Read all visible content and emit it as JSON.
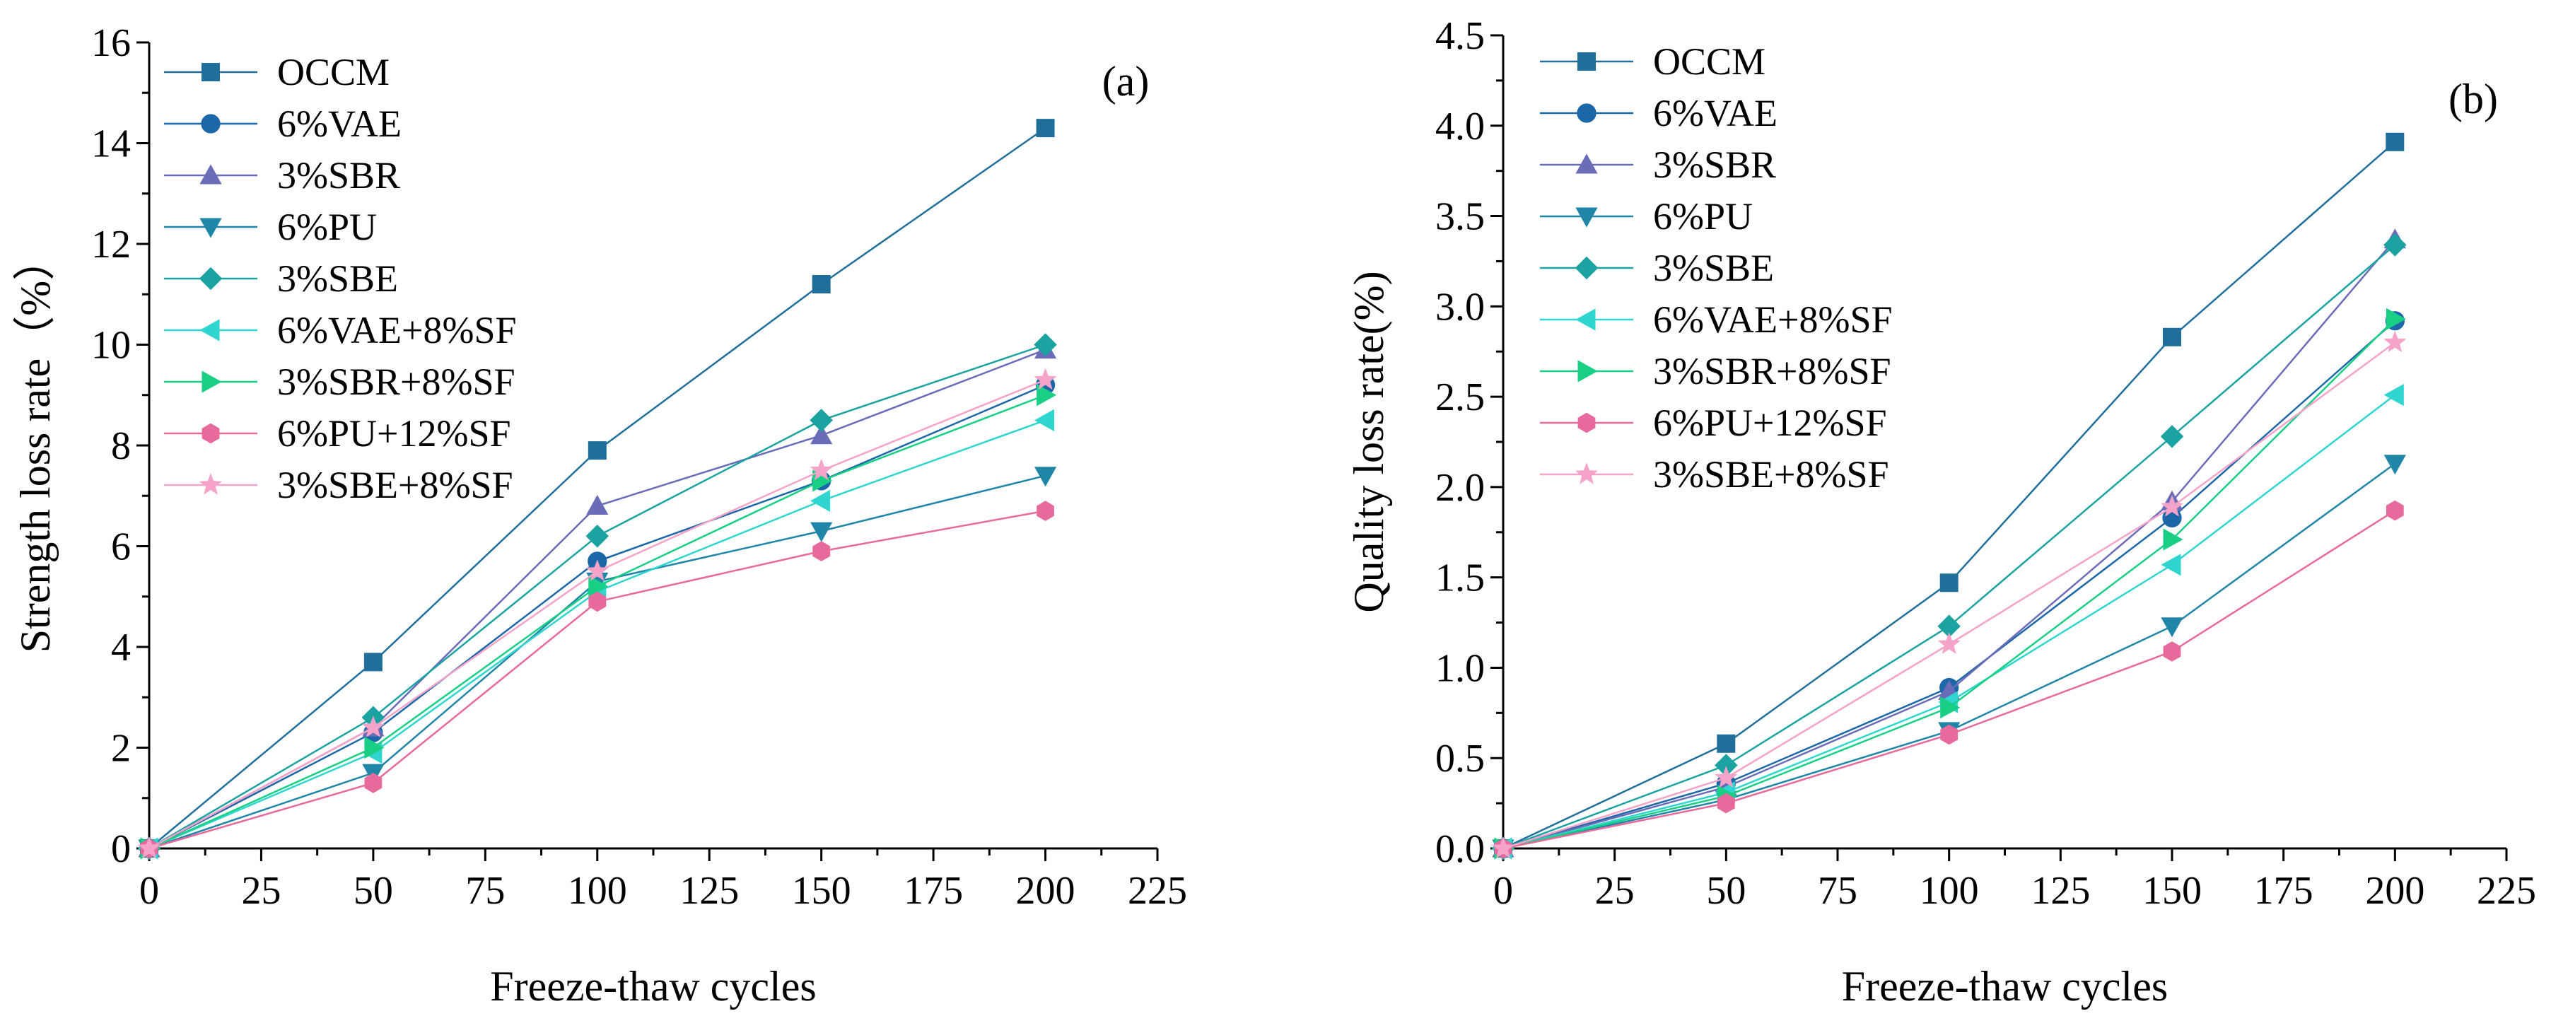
{
  "figure": {
    "colors": {
      "OCCM": "#1f6f9a",
      "6%VAE": "#1c67a8",
      "3%SBR": "#6a6cb8",
      "6%PU": "#1f86a8",
      "3%SBE": "#1aa3a0",
      "6%VAE+8%SF": "#2fd6d0",
      "3%SBR+8%SF": "#19cf86",
      "6%PU+12%SF": "#e8699b",
      "3%SBE+8%SF": "#f5a3c8"
    },
    "markers": {
      "OCCM": "square",
      "6%VAE": "circle",
      "3%SBR": "triangle-up",
      "6%PU": "triangle-down",
      "3%SBE": "diamond",
      "6%VAE+8%SF": "triangle-left",
      "3%SBR+8%SF": "triangle-right",
      "6%PU+12%SF": "hexagon",
      "3%SBE+8%SF": "star"
    }
  },
  "chart_data": [
    {
      "type": "line",
      "panel_label": "(a)",
      "xlabel": "Freeze-thaw cycles",
      "ylabel": "Strength loss rate（%）",
      "x": [
        0,
        50,
        100,
        150,
        200
      ],
      "xlim": [
        0,
        225
      ],
      "ylim": [
        0,
        16
      ],
      "xticks": [
        0,
        25,
        50,
        75,
        100,
        125,
        150,
        175,
        200,
        225
      ],
      "yticks": [
        0,
        2,
        4,
        6,
        8,
        10,
        12,
        14,
        16
      ],
      "xtick_labels": [
        "0",
        "25",
        "50",
        "75",
        "100",
        "125",
        "150",
        "175",
        "200",
        "225"
      ],
      "ytick_labels": [
        "0",
        "2",
        "4",
        "6",
        "8",
        "10",
        "12",
        "14",
        "16"
      ],
      "legend_position": "top-left",
      "series": [
        {
          "name": "OCCM",
          "values": [
            0,
            3.7,
            7.9,
            11.2,
            14.3
          ]
        },
        {
          "name": "6%VAE",
          "values": [
            0,
            2.3,
            5.7,
            7.3,
            9.2
          ]
        },
        {
          "name": "3%SBR",
          "values": [
            0,
            2.4,
            6.8,
            8.2,
            9.9
          ]
        },
        {
          "name": "6%PU",
          "values": [
            0,
            1.5,
            5.3,
            6.3,
            7.4
          ]
        },
        {
          "name": "3%SBE",
          "values": [
            0,
            2.6,
            6.2,
            8.5,
            10.0
          ]
        },
        {
          "name": "6%VAE+8%SF",
          "values": [
            0,
            1.9,
            5.1,
            6.9,
            8.5
          ]
        },
        {
          "name": "3%SBR+8%SF",
          "values": [
            0,
            2.0,
            5.2,
            7.3,
            9.0
          ]
        },
        {
          "name": "6%PU+12%SF",
          "values": [
            0,
            1.3,
            4.9,
            5.9,
            6.7
          ]
        },
        {
          "name": "3%SBE+8%SF",
          "values": [
            0,
            2.4,
            5.5,
            7.5,
            9.3
          ]
        }
      ]
    },
    {
      "type": "line",
      "panel_label": "(b)",
      "xlabel": "Freeze-thaw cycles",
      "ylabel": "Quality loss rate(%)",
      "x": [
        0,
        50,
        100,
        150,
        200
      ],
      "xlim": [
        0,
        225
      ],
      "ylim": [
        0,
        4.5
      ],
      "xticks": [
        0,
        25,
        50,
        75,
        100,
        125,
        150,
        175,
        200,
        225
      ],
      "yticks": [
        0,
        0.5,
        1,
        1.5,
        2,
        2.5,
        3,
        3.5,
        4,
        4.5
      ],
      "xtick_labels": [
        "0",
        "25",
        "50",
        "75",
        "100",
        "125",
        "150",
        "175",
        "200",
        "225"
      ],
      "ytick_labels": [
        "0.0",
        "0.5",
        "1.0",
        "1.5",
        "2.0",
        "2.5",
        "3.0",
        "3.5",
        "4.0",
        "4.5"
      ],
      "legend_position": "top-left",
      "series": [
        {
          "name": "OCCM",
          "values": [
            0,
            0.58,
            1.47,
            2.83,
            3.91
          ]
        },
        {
          "name": "6%VAE",
          "values": [
            0,
            0.36,
            0.89,
            1.83,
            2.92
          ]
        },
        {
          "name": "3%SBR",
          "values": [
            0,
            0.34,
            0.87,
            1.92,
            3.37
          ]
        },
        {
          "name": "6%PU",
          "values": [
            0,
            0.27,
            0.65,
            1.23,
            2.13
          ]
        },
        {
          "name": "3%SBE",
          "values": [
            0,
            0.46,
            1.23,
            2.28,
            3.34
          ]
        },
        {
          "name": "6%VAE+8%SF",
          "values": [
            0,
            0.31,
            0.81,
            1.57,
            2.51
          ]
        },
        {
          "name": "3%SBR+8%SF",
          "values": [
            0,
            0.29,
            0.78,
            1.71,
            2.93
          ]
        },
        {
          "name": "6%PU+12%SF",
          "values": [
            0,
            0.25,
            0.63,
            1.09,
            1.87
          ]
        },
        {
          "name": "3%SBE+8%SF",
          "values": [
            0,
            0.39,
            1.13,
            1.89,
            2.8
          ]
        }
      ]
    }
  ]
}
